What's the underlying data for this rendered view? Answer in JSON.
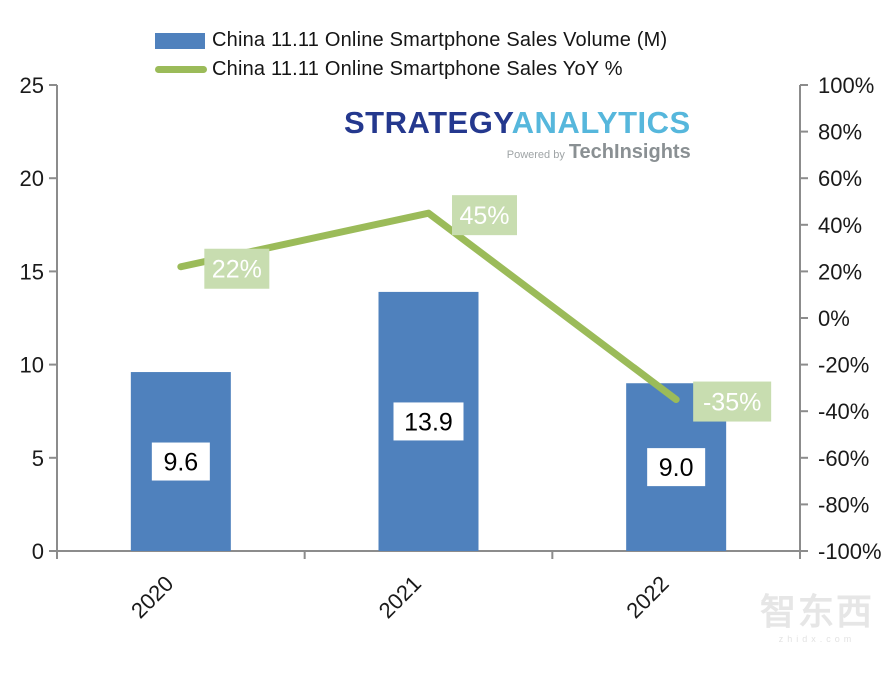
{
  "legend": {
    "items": [
      {
        "label": "China 11.11 Online Smartphone Sales Volume (M)",
        "marker": "bar"
      },
      {
        "label": "China 11.11 Online Smartphone Sales YoY %",
        "marker": "line"
      }
    ]
  },
  "logo": {
    "brand_primary": "STRATEGY",
    "brand_secondary": "ANALYTICS",
    "powered_by": "Powered by",
    "powered_by_brand": "TechInsights"
  },
  "watermark": {
    "text": "智东西",
    "subtext": "zhidx.com"
  },
  "colors": {
    "bar": "#4F81BD",
    "line": "#9BBB59",
    "line_label_bg": "#C8DDB0",
    "line_label_text": "#FFFFFF",
    "bar_label_bg": "#FFFFFF",
    "bar_label_text": "#000000",
    "axis": "#8C8C8C",
    "tick_text": "#1A1A1A"
  },
  "chart_data": {
    "type": "bar",
    "subtype": "bar+line combo",
    "categories": [
      "2020",
      "2021",
      "2022"
    ],
    "series": [
      {
        "name": "China 11.11 Online Smartphone Sales Volume (M)",
        "type": "bar",
        "axis": "left",
        "values": [
          9.6,
          13.9,
          9.0
        ],
        "labels": [
          "9.6",
          "13.9",
          "9.0"
        ]
      },
      {
        "name": "China 11.11 Online Smartphone Sales YoY %",
        "type": "line",
        "axis": "right",
        "values": [
          22,
          45,
          -35
        ],
        "labels": [
          "22%",
          "45%",
          "-35%"
        ]
      }
    ],
    "left_axis": {
      "min": 0,
      "max": 25,
      "tick_labels": [
        "0",
        "5",
        "10",
        "15",
        "20",
        "25"
      ]
    },
    "right_axis": {
      "min": -100,
      "max": 100,
      "tick_labels": [
        "-100%",
        "-80%",
        "-60%",
        "-40%",
        "-20%",
        "0%",
        "20%",
        "40%",
        "60%",
        "80%",
        "100%"
      ]
    },
    "grid": false,
    "legend_position": "top-left",
    "x_tick_rotation_deg": -45
  }
}
